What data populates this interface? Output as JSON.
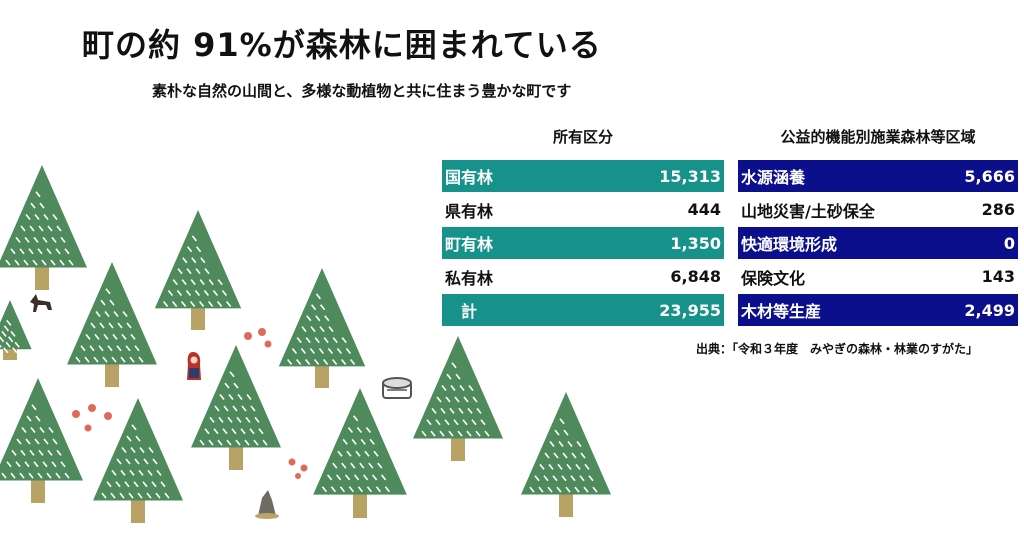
{
  "title": "町の約 91%が森林に囲まれている",
  "subtitle": "素朴な自然の山間と、多様な動植物と共に住まう豊かな町です",
  "colors": {
    "teal": "#17928a",
    "navy": "#0c0f8c",
    "tree": "#4f8a5c",
    "trunk": "#b9a265"
  },
  "ownership": {
    "header": "所有区分",
    "rows": [
      {
        "label": "国有林",
        "value": "15,313",
        "highlight": true
      },
      {
        "label": "県有林",
        "value": "444",
        "highlight": false
      },
      {
        "label": "町有林",
        "value": "1,350",
        "highlight": true
      },
      {
        "label": "私有林",
        "value": "6,848",
        "highlight": false
      },
      {
        "label": "　計",
        "value": "23,955",
        "highlight": true
      }
    ]
  },
  "zoning": {
    "header": "公益的機能別施業森林等区域",
    "rows": [
      {
        "label": "水源涵養",
        "value": "5,666",
        "highlight": true
      },
      {
        "label": "山地災害/土砂保全",
        "value": "286",
        "highlight": false
      },
      {
        "label": "快適環境形成",
        "value": "0",
        "highlight": true
      },
      {
        "label": "保険文化",
        "value": "143",
        "highlight": false
      },
      {
        "label": "木材等生産",
        "value": "2,499",
        "highlight": true
      }
    ]
  },
  "source": "出典：「令和３年度　みやぎの森林・林業のすがた」"
}
